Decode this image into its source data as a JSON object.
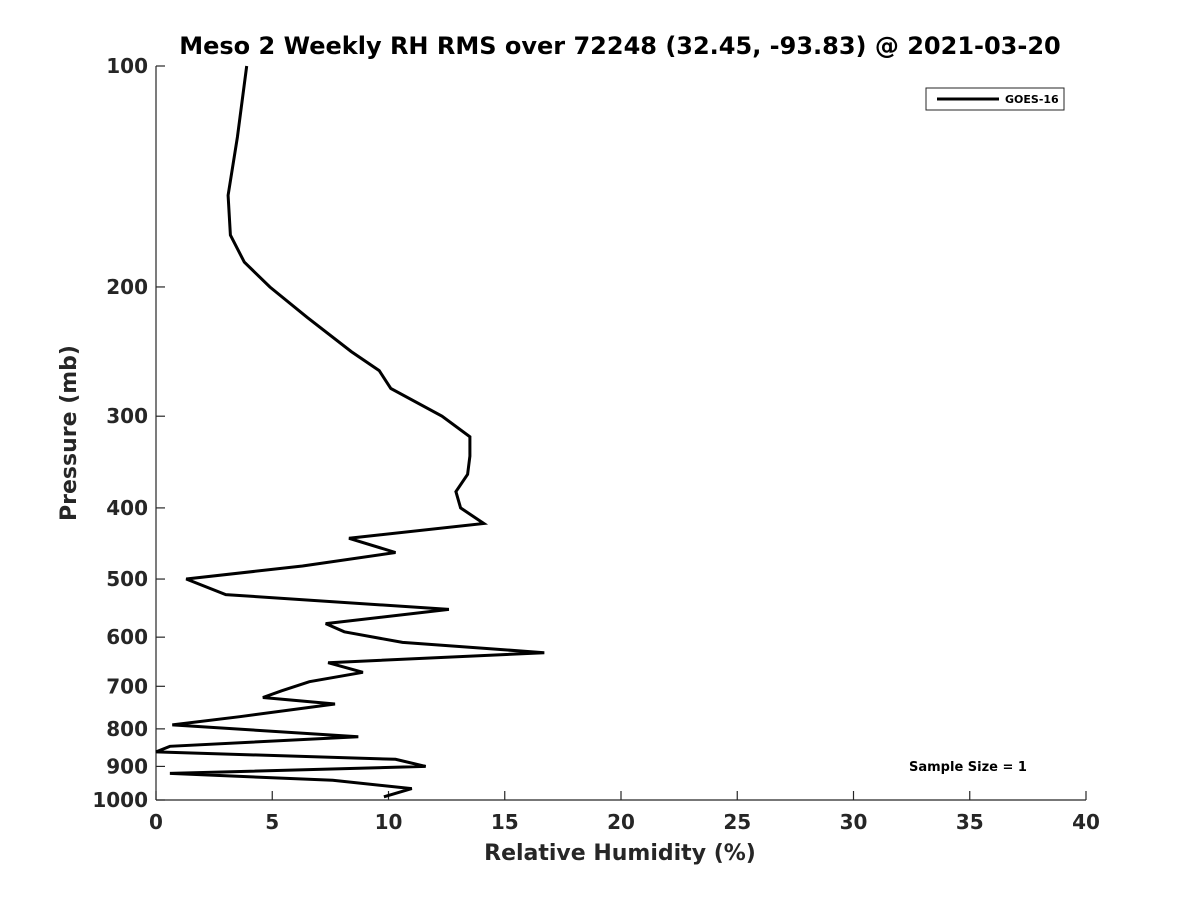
{
  "chart_data": {
    "type": "line",
    "title": "Meso 2 Weekly RH RMS over 72248 (32.45, -93.83) @ 2021-03-20",
    "xlabel": "Relative Humidity (%)",
    "ylabel": "Pressure (mb)",
    "xlim": [
      0,
      40
    ],
    "ylim": [
      1000,
      100
    ],
    "y_scale": "log",
    "y_reversed": true,
    "x_ticks": [
      "0",
      "5",
      "10",
      "15",
      "20",
      "25",
      "30",
      "35",
      "40"
    ],
    "y_ticks": [
      "100",
      "200",
      "300",
      "400",
      "500",
      "600",
      "700",
      "800",
      "900",
      "1000"
    ],
    "grid": false,
    "legend_position": "top-right",
    "annotation": "Sample Size = 1",
    "series": [
      {
        "name": "GOES-16",
        "color": "#000000",
        "points": [
          [
            3.9,
            100
          ],
          [
            3.5,
            125
          ],
          [
            3.1,
            150
          ],
          [
            3.2,
            170
          ],
          [
            3.8,
            185
          ],
          [
            4.9,
            200
          ],
          [
            6.5,
            220
          ],
          [
            8.4,
            245
          ],
          [
            9.6,
            260
          ],
          [
            10.1,
            275
          ],
          [
            12.3,
            300
          ],
          [
            13.5,
            320
          ],
          [
            13.5,
            340
          ],
          [
            13.4,
            360
          ],
          [
            12.9,
            380
          ],
          [
            13.1,
            400
          ],
          [
            14.1,
            420
          ],
          [
            8.3,
            440
          ],
          [
            10.3,
            460
          ],
          [
            6.3,
            480
          ],
          [
            1.3,
            500
          ],
          [
            3.0,
            525
          ],
          [
            12.6,
            550
          ],
          [
            7.3,
            575
          ],
          [
            8.1,
            590
          ],
          [
            10.6,
            610
          ],
          [
            16.7,
            630
          ],
          [
            7.4,
            650
          ],
          [
            8.9,
            670
          ],
          [
            6.6,
            690
          ],
          [
            5.4,
            710
          ],
          [
            4.6,
            725
          ],
          [
            7.7,
            740
          ],
          [
            3.6,
            770
          ],
          [
            0.7,
            790
          ],
          [
            8.7,
            820
          ],
          [
            0.6,
            845
          ],
          [
            0.0,
            860
          ],
          [
            10.3,
            880
          ],
          [
            11.6,
            900
          ],
          [
            0.6,
            920
          ],
          [
            7.6,
            940
          ],
          [
            11.0,
            965
          ],
          [
            9.8,
            990
          ]
        ]
      }
    ]
  }
}
